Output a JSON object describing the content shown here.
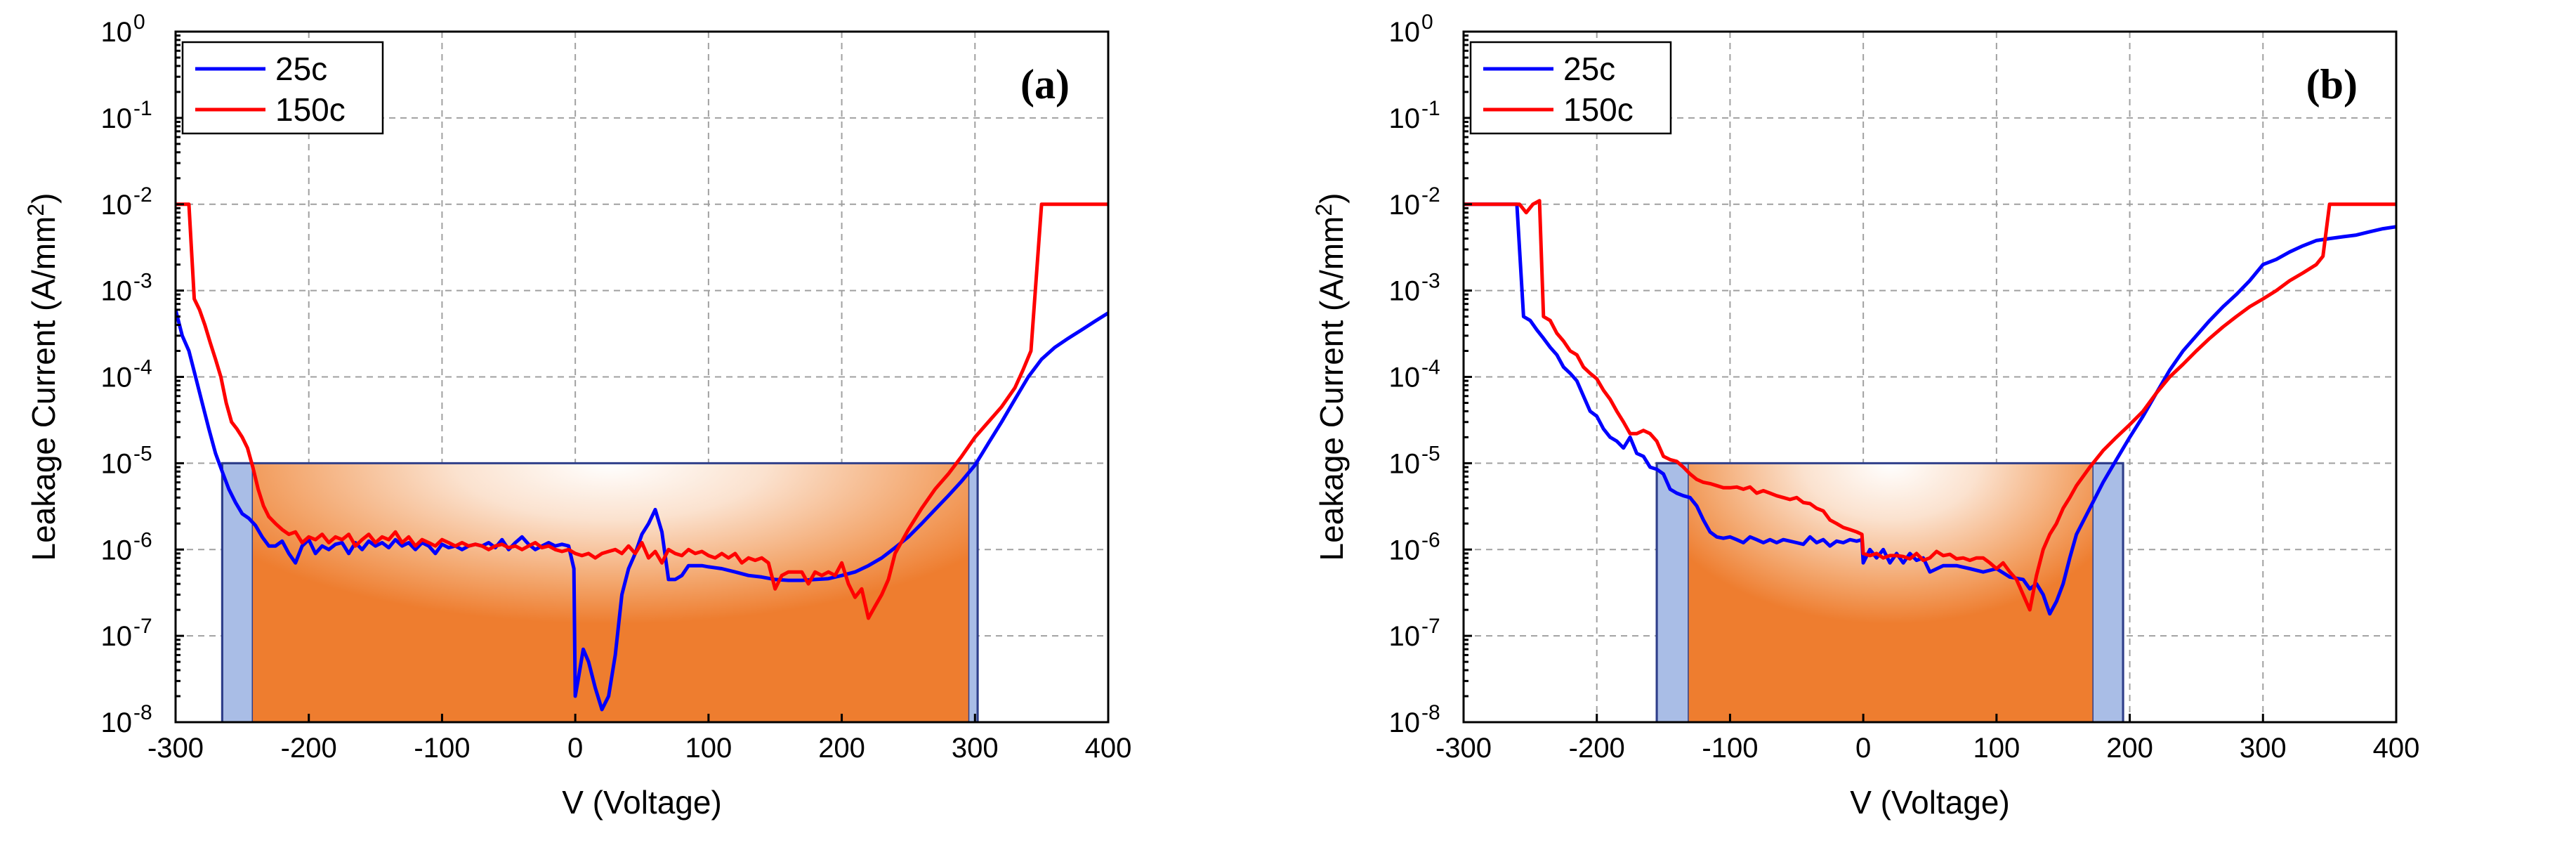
{
  "colors": {
    "series_25c": "#0000ff",
    "series_150c": "#ff0000",
    "band_fill": "#a9bde6",
    "band_stroke": "#2f3f8a",
    "hotspot": "#ee7d2f"
  },
  "chart_data": [
    {
      "type": "line",
      "panel_label": "(a)",
      "xlabel": "V (Voltage)",
      "ylabel_main": "Leakage Current (A/mm",
      "ylabel_sup": "2",
      "ylabel_end": ")",
      "y_scale": "log",
      "xlim": [
        -300,
        400
      ],
      "ylim_exponents": [
        -8,
        0
      ],
      "x_ticks": [
        -300,
        -200,
        -100,
        0,
        100,
        200,
        300,
        400
      ],
      "x_tick_labels": [
        "-300",
        "-200",
        "-100",
        "0",
        "100",
        "200",
        "300",
        "400"
      ],
      "y_tick_base": "10",
      "y_tick_exponents": [
        "-8",
        "-7",
        "-6",
        "-5",
        "-4",
        "-3",
        "-2",
        "-1",
        "0"
      ],
      "grid": true,
      "legend_position": "top-left",
      "highlight_box": {
        "level": 1e-05,
        "outer_left": -265,
        "inner_left": -242,
        "inner_right": 295,
        "outer_right": 302
      },
      "series": [
        {
          "name": "25c",
          "x": [
            -300,
            -295,
            -290,
            -285,
            -280,
            -275,
            -270,
            -265,
            -260,
            -255,
            -250,
            -245,
            -240,
            -235,
            -230,
            -225,
            -220,
            -215,
            -210,
            -205,
            -200,
            -195,
            -190,
            -185,
            -180,
            -175,
            -170,
            -165,
            -160,
            -155,
            -150,
            -145,
            -140,
            -135,
            -130,
            -125,
            -120,
            -115,
            -110,
            -105,
            -100,
            -95,
            -90,
            -85,
            -80,
            -75,
            -70,
            -65,
            -60,
            -55,
            -50,
            -45,
            -40,
            -35,
            -30,
            -25,
            -20,
            -15,
            -10,
            -5,
            -1,
            0,
            2,
            6,
            10,
            15,
            20,
            25,
            30,
            35,
            40,
            45,
            50,
            55,
            60,
            65,
            70,
            75,
            80,
            85,
            90,
            95,
            100,
            110,
            120,
            130,
            140,
            150,
            160,
            170,
            180,
            190,
            200,
            210,
            220,
            230,
            240,
            250,
            260,
            270,
            280,
            290,
            300,
            310,
            320,
            330,
            340,
            350,
            360,
            370,
            380,
            390,
            400
          ],
          "y": [
            0.0006,
            0.0003,
            0.0002,
            0.0001,
            5e-05,
            2.5e-05,
            1.3e-05,
            8e-06,
            5e-06,
            3.5e-06,
            2.6e-06,
            2.3e-06,
            1.9e-06,
            1.4e-06,
            1.1e-06,
            1.1e-06,
            1.25e-06,
            9e-07,
            7e-07,
            1.1e-06,
            1.3e-06,
            9e-07,
            1.1e-06,
            1e-06,
            1.15e-06,
            1.2e-06,
            9e-07,
            1.2e-06,
            1e-06,
            1.25e-06,
            1.1e-06,
            1.2e-06,
            1.05e-06,
            1.3e-06,
            1.1e-06,
            1.2e-06,
            1e-06,
            1.2e-06,
            1.1e-06,
            9e-07,
            1.15e-06,
            1.05e-06,
            1.1e-06,
            1e-06,
            1.1e-06,
            1.15e-06,
            1.1e-06,
            1.2e-06,
            1.05e-06,
            1.3e-06,
            1e-06,
            1.2e-06,
            1.4e-06,
            1.15e-06,
            1e-06,
            1.1e-06,
            1.2e-06,
            1.1e-06,
            1.15e-06,
            1.1e-06,
            6e-07,
            2e-08,
            3e-08,
            7e-08,
            5e-08,
            2.5e-08,
            1.4e-08,
            2e-08,
            6e-08,
            3e-07,
            6e-07,
            9e-07,
            1.5e-06,
            2e-06,
            2.9e-06,
            1.6e-06,
            4.5e-07,
            4.5e-07,
            5e-07,
            6.5e-07,
            6.5e-07,
            6.5e-07,
            6.3e-07,
            6e-07,
            5.5e-07,
            5e-07,
            4.8e-07,
            4.5e-07,
            4.4e-07,
            4.4e-07,
            4.5e-07,
            4.6e-07,
            5e-07,
            5.5e-07,
            6.5e-07,
            8e-07,
            1.05e-06,
            1.4e-06,
            2e-06,
            2.9e-06,
            4.2e-06,
            6.2e-06,
            9.5e-06,
            1.7e-05,
            3e-05,
            5.5e-05,
            0.0001,
            0.00016,
            0.00022,
            0.00028,
            0.00035,
            0.00044,
            0.00055
          ]
        },
        {
          "name": "150c",
          "x": [
            -300,
            -296,
            -290,
            -286,
            -282,
            -278,
            -274,
            -270,
            -266,
            -262,
            -258,
            -254,
            -250,
            -246,
            -242,
            -238,
            -234,
            -230,
            -225,
            -220,
            -215,
            -210,
            -205,
            -200,
            -195,
            -190,
            -185,
            -180,
            -175,
            -170,
            -165,
            -160,
            -155,
            -150,
            -145,
            -140,
            -135,
            -130,
            -125,
            -120,
            -115,
            -110,
            -105,
            -100,
            -95,
            -90,
            -85,
            -80,
            -75,
            -70,
            -65,
            -60,
            -55,
            -50,
            -45,
            -40,
            -35,
            -30,
            -25,
            -20,
            -15,
            -10,
            -5,
            0,
            5,
            10,
            15,
            20,
            25,
            30,
            35,
            40,
            45,
            50,
            55,
            60,
            65,
            70,
            75,
            80,
            85,
            90,
            95,
            100,
            105,
            110,
            115,
            120,
            125,
            130,
            135,
            140,
            145,
            150,
            155,
            160,
            165,
            170,
            175,
            180,
            185,
            190,
            195,
            200,
            205,
            210,
            215,
            220,
            225,
            230,
            235,
            240,
            250,
            260,
            270,
            280,
            290,
            300,
            310,
            320,
            330,
            336,
            342,
            350,
            360,
            370,
            380,
            390,
            400
          ],
          "y": [
            0.01,
            0.01,
            0.01,
            0.0008,
            0.0006,
            0.0004,
            0.00025,
            0.00016,
            0.0001,
            5e-05,
            3e-05,
            2.5e-05,
            2e-05,
            1.5e-05,
            9e-06,
            5e-06,
            3.2e-06,
            2.4e-06,
            2e-06,
            1.7e-06,
            1.5e-06,
            1.6e-06,
            1.2e-06,
            1.4e-06,
            1.3e-06,
            1.5e-06,
            1.2e-06,
            1.4e-06,
            1.3e-06,
            1.5e-06,
            1.1e-06,
            1.3e-06,
            1.5e-06,
            1.2e-06,
            1.4e-06,
            1.3e-06,
            1.6e-06,
            1.2e-06,
            1.4e-06,
            1.1e-06,
            1.3e-06,
            1.2e-06,
            1.1e-06,
            1.3e-06,
            1.2e-06,
            1.1e-06,
            1.2e-06,
            1.1e-06,
            1.15e-06,
            1.1e-06,
            1e-06,
            1.1e-06,
            1.15e-06,
            1.05e-06,
            1.1e-06,
            1e-06,
            1.1e-06,
            1.2e-06,
            1.05e-06,
            1.1e-06,
            1e-06,
            9.5e-07,
            1e-06,
            9e-07,
            8.5e-07,
            9e-07,
            8e-07,
            9e-07,
            9.5e-07,
            1e-06,
            9e-07,
            1.1e-06,
            9e-07,
            1.2e-06,
            8e-07,
            9.5e-07,
            7e-07,
            1e-06,
            9e-07,
            8.5e-07,
            1e-06,
            9e-07,
            9.5e-07,
            8.5e-07,
            8e-07,
            9e-07,
            8e-07,
            9e-07,
            7e-07,
            8e-07,
            7.5e-07,
            8e-07,
            7e-07,
            3.5e-07,
            5e-07,
            5.5e-07,
            5.5e-07,
            5.5e-07,
            4e-07,
            5.5e-07,
            5e-07,
            5.5e-07,
            5e-07,
            7e-07,
            4e-07,
            2.8e-07,
            3.5e-07,
            1.6e-07,
            2.2e-07,
            3e-07,
            4.5e-07,
            9e-07,
            1.7e-06,
            3e-06,
            5e-06,
            7.5e-06,
            1.2e-05,
            2e-05,
            3e-05,
            4.5e-05,
            7.5e-05,
            0.00012,
            0.0002,
            0.01,
            0.01,
            0.01,
            0.01,
            0.01,
            0.01
          ]
        }
      ]
    },
    {
      "type": "line",
      "panel_label": "(b)",
      "xlabel": "V (Voltage)",
      "ylabel_main": "Leakage Current (A/mm",
      "ylabel_sup": "2",
      "ylabel_end": ")",
      "y_scale": "log",
      "xlim": [
        -300,
        400
      ],
      "ylim_exponents": [
        -8,
        0
      ],
      "x_ticks": [
        -300,
        -200,
        -100,
        0,
        100,
        200,
        300,
        400
      ],
      "x_tick_labels": [
        "-300",
        "-200",
        "-100",
        "0",
        "100",
        "200",
        "300",
        "400"
      ],
      "y_tick_base": "10",
      "y_tick_exponents": [
        "-8",
        "-7",
        "-6",
        "-5",
        "-4",
        "-3",
        "-2",
        "-1",
        "0"
      ],
      "grid": true,
      "legend_position": "top-left",
      "highlight_box": {
        "level": 1e-05,
        "outer_left": -155,
        "inner_left": -131,
        "inner_right": 172,
        "outer_right": 195
      },
      "series": [
        {
          "name": "25c",
          "x": [
            -300,
            -260,
            -255,
            -250,
            -245,
            -240,
            -235,
            -230,
            -225,
            -220,
            -215,
            -210,
            -205,
            -200,
            -195,
            -190,
            -185,
            -180,
            -175,
            -170,
            -165,
            -160,
            -155,
            -150,
            -145,
            -140,
            -135,
            -130,
            -125,
            -120,
            -115,
            -110,
            -105,
            -100,
            -95,
            -90,
            -85,
            -80,
            -75,
            -70,
            -65,
            -60,
            -55,
            -50,
            -45,
            -40,
            -35,
            -30,
            -25,
            -20,
            -15,
            -10,
            -5,
            -1,
            0,
            5,
            10,
            15,
            20,
            25,
            30,
            35,
            40,
            45,
            50,
            60,
            70,
            80,
            90,
            100,
            110,
            120,
            125,
            130,
            135,
            140,
            145,
            150,
            155,
            160,
            170,
            180,
            190,
            200,
            210,
            220,
            230,
            240,
            250,
            260,
            270,
            280,
            290,
            300,
            310,
            320,
            330,
            340,
            350,
            360,
            370,
            380,
            390,
            400
          ],
          "y": [
            0.01,
            0.01,
            0.0005,
            0.00045,
            0.00035,
            0.00028,
            0.00022,
            0.00018,
            0.00013,
            0.00011,
            9e-05,
            6e-05,
            4e-05,
            3.5e-05,
            2.5e-05,
            2e-05,
            1.8e-05,
            1.5e-05,
            2e-05,
            1.3e-05,
            1.2e-05,
            9e-06,
            8.5e-06,
            7.5e-06,
            5e-06,
            4.5e-06,
            4.2e-06,
            4e-06,
            3.2e-06,
            2.2e-06,
            1.6e-06,
            1.4e-06,
            1.35e-06,
            1.4e-06,
            1.3e-06,
            1.2e-06,
            1.4e-06,
            1.3e-06,
            1.2e-06,
            1.3e-06,
            1.2e-06,
            1.3e-06,
            1.25e-06,
            1.2e-06,
            1.15e-06,
            1.4e-06,
            1.2e-06,
            1.3e-06,
            1.1e-06,
            1.25e-06,
            1.2e-06,
            1.3e-06,
            1.25e-06,
            1.3e-06,
            7e-07,
            1e-06,
            8e-07,
            1e-06,
            7e-07,
            9e-07,
            7e-07,
            9e-07,
            7.5e-07,
            8e-07,
            5.5e-07,
            6.5e-07,
            6.5e-07,
            6e-07,
            5.5e-07,
            6e-07,
            4.8e-07,
            4.5e-07,
            3.5e-07,
            4e-07,
            3e-07,
            1.8e-07,
            2.5e-07,
            4e-07,
            8e-07,
            1.5e-06,
            3e-06,
            6e-06,
            1.1e-05,
            2e-05,
            3.5e-05,
            6.5e-05,
            0.00012,
            0.0002,
            0.0003,
            0.00045,
            0.00065,
            0.0009,
            0.0013,
            0.002,
            0.0023,
            0.0028,
            0.0033,
            0.0038,
            0.004,
            0.0042,
            0.0044,
            0.0048,
            0.0052,
            0.0055
          ]
        },
        {
          "name": "150c",
          "x": [
            -300,
            -265,
            -262,
            -258,
            -253,
            -248,
            -243,
            -240,
            -235,
            -230,
            -225,
            -220,
            -215,
            -210,
            -205,
            -200,
            -195,
            -190,
            -185,
            -180,
            -175,
            -170,
            -165,
            -160,
            -155,
            -150,
            -145,
            -140,
            -135,
            -130,
            -125,
            -120,
            -115,
            -110,
            -105,
            -100,
            -95,
            -90,
            -85,
            -80,
            -75,
            -70,
            -65,
            -60,
            -55,
            -50,
            -45,
            -40,
            -35,
            -30,
            -25,
            -20,
            -15,
            -10,
            -5,
            -1,
            0,
            5,
            10,
            15,
            20,
            25,
            30,
            35,
            40,
            45,
            50,
            55,
            60,
            65,
            70,
            75,
            80,
            85,
            90,
            95,
            100,
            105,
            110,
            115,
            120,
            125,
            130,
            135,
            140,
            145,
            150,
            155,
            160,
            170,
            180,
            190,
            200,
            210,
            220,
            230,
            240,
            250,
            260,
            270,
            280,
            290,
            300,
            310,
            320,
            330,
            340,
            345,
            350,
            360,
            370,
            380,
            390,
            400
          ],
          "y": [
            0.01,
            0.01,
            0.01,
            0.01,
            0.008,
            0.01,
            0.011,
            0.0005,
            0.00045,
            0.00032,
            0.00026,
            0.0002,
            0.00018,
            0.00013,
            0.00011,
            9.5e-05,
            7e-05,
            5.5e-05,
            4e-05,
            3e-05,
            2.2e-05,
            2.2e-05,
            2.4e-05,
            2.2e-05,
            1.8e-05,
            1.2e-05,
            1.1e-05,
            1.05e-05,
            9e-06,
            7.5e-06,
            6.5e-06,
            6e-06,
            5.8e-06,
            5.5e-06,
            5.2e-06,
            5.2e-06,
            5.3e-06,
            5e-06,
            5.3e-06,
            4.5e-06,
            4.8e-06,
            4.5e-06,
            4.2e-06,
            4e-06,
            3.8e-06,
            4e-06,
            3.5e-06,
            3.4e-06,
            3e-06,
            2.8e-06,
            2.2e-06,
            2e-06,
            1.8e-06,
            1.7e-06,
            1.6e-06,
            1.5e-06,
            9e-07,
            8.5e-07,
            9e-07,
            8e-07,
            8.5e-07,
            8.5e-07,
            8.3e-07,
            7.8e-07,
            9e-07,
            7.5e-07,
            8e-07,
            9.5e-07,
            8.5e-07,
            8.8e-07,
            7.8e-07,
            8e-07,
            7.5e-07,
            8e-07,
            8e-07,
            7e-07,
            6e-07,
            7e-07,
            5.5e-07,
            4.5e-07,
            3e-07,
            2e-07,
            5e-07,
            1e-06,
            1.5e-06,
            2e-06,
            3e-06,
            4e-06,
            5.5e-06,
            9e-06,
            1.4e-05,
            2e-05,
            2.8e-05,
            4e-05,
            6.5e-05,
            0.0001,
            0.00014,
            0.0002,
            0.00028,
            0.00038,
            0.0005,
            0.00065,
            0.0008,
            0.001,
            0.0013,
            0.0016,
            0.002,
            0.0025,
            0.01,
            0.01,
            0.01,
            0.01,
            0.01,
            0.01
          ]
        }
      ]
    }
  ]
}
